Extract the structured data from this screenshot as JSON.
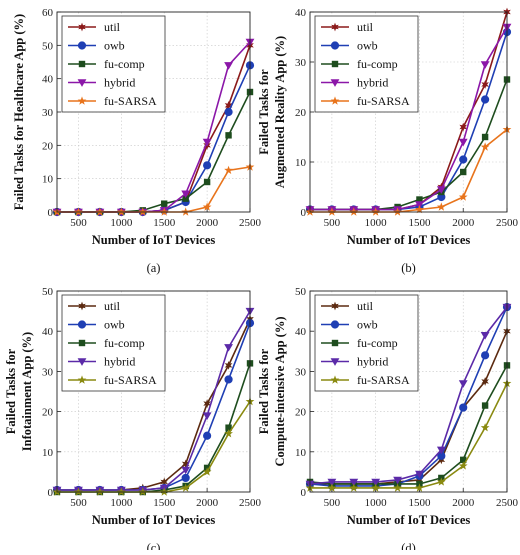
{
  "chart_data": [
    {
      "type": "line",
      "caption": "(a)",
      "ylabel": [
        "Failed Tasks for Healthcare App (%)"
      ],
      "xlabel": "Number of IoT Devices",
      "xlim": [
        250,
        2500
      ],
      "ylim": [
        0,
        60
      ],
      "xticks": [
        500,
        1000,
        1500,
        2000,
        2500
      ],
      "yticks": [
        0,
        10,
        20,
        30,
        40,
        50,
        60
      ],
      "x": [
        250,
        500,
        750,
        1000,
        1250,
        1500,
        1750,
        2000,
        2250,
        2500
      ],
      "grid": true,
      "legend_position": "top-left",
      "series": [
        {
          "name": "util",
          "color": "#8b1a1a",
          "marker": "star6",
          "values": [
            0,
            0,
            0,
            0,
            0,
            0.5,
            3,
            20,
            32,
            50
          ]
        },
        {
          "name": "owb",
          "color": "#1f3fb4",
          "marker": "circle",
          "values": [
            0,
            0,
            0,
            0,
            0,
            0.5,
            3,
            14,
            30,
            44
          ]
        },
        {
          "name": "fu-comp",
          "color": "#1e4d1e",
          "marker": "square",
          "values": [
            0,
            0,
            0,
            0,
            0.5,
            2.5,
            4,
            9,
            23,
            36
          ]
        },
        {
          "name": "hybrid",
          "color": "#8b17a8",
          "marker": "tri-down",
          "values": [
            0,
            0,
            0,
            0,
            0,
            0.5,
            5.5,
            21,
            44,
            51
          ]
        },
        {
          "name": "fu-SARSA",
          "color": "#e8741c",
          "marker": "star5",
          "values": [
            0,
            0,
            0,
            0,
            0,
            0,
            0,
            1.5,
            12.5,
            13.5
          ]
        }
      ]
    },
    {
      "type": "line",
      "caption": "(b)",
      "ylabel": [
        "Failed Tasks for",
        "Augmented Reality App (%)"
      ],
      "xlabel": "Number of IoT Devices",
      "xlim": [
        250,
        2500
      ],
      "ylim": [
        0,
        40
      ],
      "xticks": [
        500,
        1000,
        1500,
        2000,
        2500
      ],
      "yticks": [
        0,
        10,
        20,
        30,
        40
      ],
      "x": [
        250,
        500,
        750,
        1000,
        1250,
        1500,
        1750,
        2000,
        2250,
        2500
      ],
      "grid": true,
      "legend_position": "top-left",
      "series": [
        {
          "name": "util",
          "color": "#8b1a1a",
          "marker": "star6",
          "values": [
            0.5,
            0.5,
            0.5,
            0.5,
            0.5,
            1.5,
            5,
            17,
            25.5,
            40
          ]
        },
        {
          "name": "owb",
          "color": "#1f3fb4",
          "marker": "circle",
          "values": [
            0.5,
            0.5,
            0.5,
            0.5,
            0.5,
            1,
            3,
            10.5,
            22.5,
            36
          ]
        },
        {
          "name": "fu-comp",
          "color": "#1e4d1e",
          "marker": "square",
          "values": [
            0.5,
            0.5,
            0.5,
            0.5,
            1,
            2.5,
            4,
            8,
            15,
            26.5
          ]
        },
        {
          "name": "hybrid",
          "color": "#8b17a8",
          "marker": "tri-down",
          "values": [
            0.5,
            0.5,
            0.5,
            0.5,
            0.5,
            1.5,
            4.5,
            14,
            29.5,
            37
          ]
        },
        {
          "name": "fu-SARSA",
          "color": "#e8741c",
          "marker": "star5",
          "values": [
            0,
            0,
            0,
            0,
            0,
            0.5,
            1,
            3,
            13,
            16.5
          ]
        }
      ]
    },
    {
      "type": "line",
      "caption": "(c)",
      "ylabel": [
        "Failed Tasks for",
        "Infotainment App (%)"
      ],
      "xlabel": "Number of IoT Devices",
      "xlim": [
        250,
        2500
      ],
      "ylim": [
        0,
        50
      ],
      "xticks": [
        500,
        1000,
        1500,
        2000,
        2500
      ],
      "yticks": [
        0,
        10,
        20,
        30,
        40,
        50
      ],
      "x": [
        250,
        500,
        750,
        1000,
        1250,
        1500,
        1750,
        2000,
        2250,
        2500
      ],
      "grid": true,
      "legend_position": "top-left",
      "series": [
        {
          "name": "util",
          "color": "#5c2a10",
          "marker": "star6",
          "values": [
            0.5,
            0.5,
            0.5,
            0.5,
            1,
            2.5,
            7,
            22,
            31.5,
            43
          ]
        },
        {
          "name": "owb",
          "color": "#1f3fb4",
          "marker": "circle",
          "values": [
            0.5,
            0.5,
            0.5,
            0.5,
            0.5,
            1,
            3.5,
            14,
            28,
            42
          ]
        },
        {
          "name": "fu-comp",
          "color": "#1e4d1e",
          "marker": "square",
          "values": [
            0,
            0,
            0,
            0,
            0,
            0.5,
            1.5,
            6,
            16,
            32
          ]
        },
        {
          "name": "hybrid",
          "color": "#5b2aa8",
          "marker": "tri-down",
          "values": [
            0.5,
            0.5,
            0.5,
            0.5,
            0.5,
            1,
            5.5,
            19,
            36,
            45
          ]
        },
        {
          "name": "fu-SARSA",
          "color": "#8a8a10",
          "marker": "star5",
          "values": [
            0,
            0,
            0,
            0,
            0,
            0,
            1,
            5,
            14.5,
            22.5
          ]
        }
      ]
    },
    {
      "type": "line",
      "caption": "(d)",
      "ylabel": [
        "Failed Tasks for",
        "Compute-intensive App (%)"
      ],
      "xlabel": "Number of IoT Devices",
      "xlim": [
        250,
        2500
      ],
      "ylim": [
        0,
        50
      ],
      "xticks": [
        500,
        1000,
        1500,
        2000,
        2500
      ],
      "yticks": [
        0,
        10,
        20,
        30,
        40,
        50
      ],
      "x": [
        250,
        500,
        750,
        1000,
        1250,
        1500,
        1750,
        2000,
        2250,
        2500
      ],
      "grid": true,
      "legend_position": "top-left",
      "series": [
        {
          "name": "util",
          "color": "#5c2a10",
          "marker": "star6",
          "values": [
            2,
            2,
            2,
            2,
            2.5,
            3,
            8,
            21,
            27.5,
            40
          ]
        },
        {
          "name": "owb",
          "color": "#1f3fb4",
          "marker": "circle",
          "values": [
            2,
            1.5,
            1.5,
            1.5,
            2,
            4,
            9,
            21,
            34,
            46
          ]
        },
        {
          "name": "fu-comp",
          "color": "#1e4d1e",
          "marker": "square",
          "values": [
            2.5,
            2,
            2,
            2,
            2,
            2,
            3.5,
            8,
            21.5,
            31.5
          ]
        },
        {
          "name": "hybrid",
          "color": "#5b2aa8",
          "marker": "tri-down",
          "values": [
            2,
            2.5,
            2.5,
            2.5,
            3,
            4.5,
            10.5,
            27,
            39,
            46
          ]
        },
        {
          "name": "fu-SARSA",
          "color": "#8a8a10",
          "marker": "star5",
          "values": [
            1,
            1,
            1,
            1,
            1,
            1,
            2.5,
            6.5,
            16,
            27
          ]
        }
      ]
    }
  ]
}
